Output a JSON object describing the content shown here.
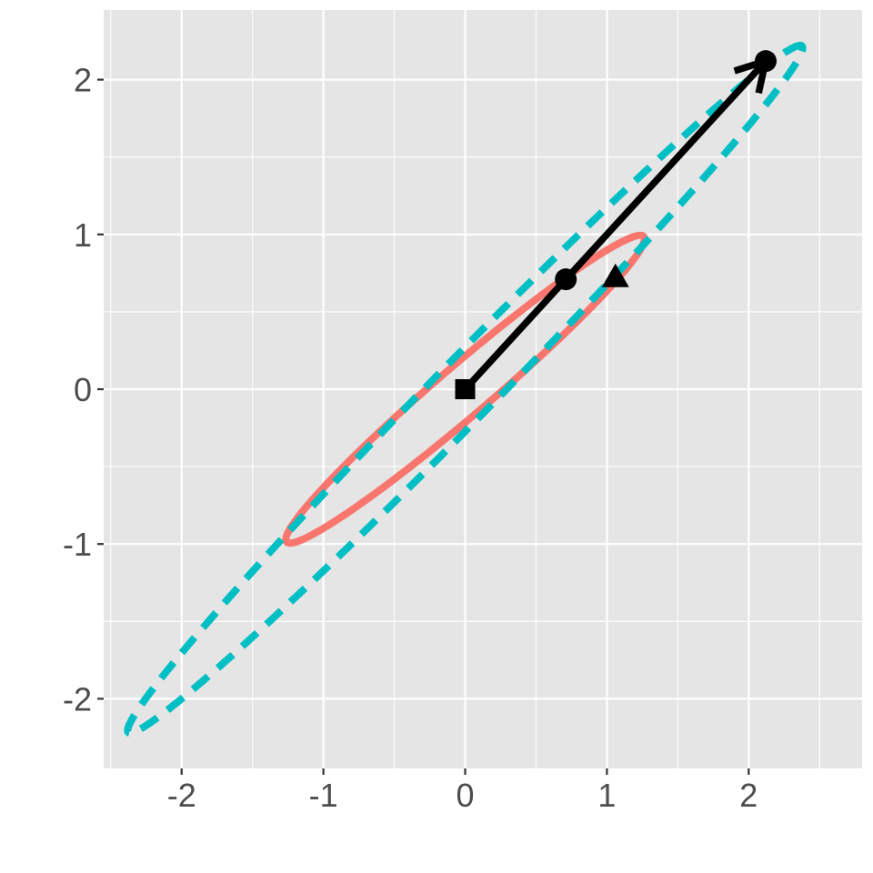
{
  "chart_data": {
    "type": "scatter",
    "title": "",
    "xlabel": "",
    "ylabel": "",
    "xlim": [
      -2.55,
      2.8
    ],
    "ylim": [
      -2.45,
      2.45
    ],
    "x_ticks": [
      -2,
      -1,
      0,
      1,
      2
    ],
    "y_ticks": [
      -2,
      -1,
      0,
      1,
      2
    ],
    "x_tick_labels": [
      "-2",
      "-1",
      "0",
      "1",
      "2"
    ],
    "y_tick_labels": [
      "-2",
      "-1",
      "0",
      "1",
      "2"
    ],
    "grid": true,
    "legend": "none",
    "background_color": "#e5e5e5",
    "gridline_color": "#ffffff",
    "ellipses": [
      {
        "name": "",
        "center": [
          0,
          0
        ],
        "semi_major": 1.6,
        "semi_minor": 0.17,
        "angle_deg": 38,
        "color": "#F8766D",
        "linetype": "solid"
      },
      {
        "name": "",
        "center": [
          0,
          0
        ],
        "semi_major": 3.25,
        "semi_minor": 0.2,
        "angle_deg": 43,
        "color": "#00BFC4",
        "linetype": "dashed"
      }
    ],
    "arrows": [
      {
        "from": [
          0,
          0
        ],
        "to": [
          2.12,
          2.12
        ],
        "color": "#000000"
      }
    ],
    "points": [
      {
        "x": 0,
        "y": 0,
        "shape": "square",
        "color": "#000000"
      },
      {
        "x": 0.71,
        "y": 0.71,
        "shape": "circle",
        "color": "#000000"
      },
      {
        "x": 2.12,
        "y": 2.12,
        "shape": "circle",
        "color": "#000000"
      },
      {
        "x": 1.06,
        "y": 0.73,
        "shape": "triangle",
        "color": "#000000"
      }
    ]
  }
}
